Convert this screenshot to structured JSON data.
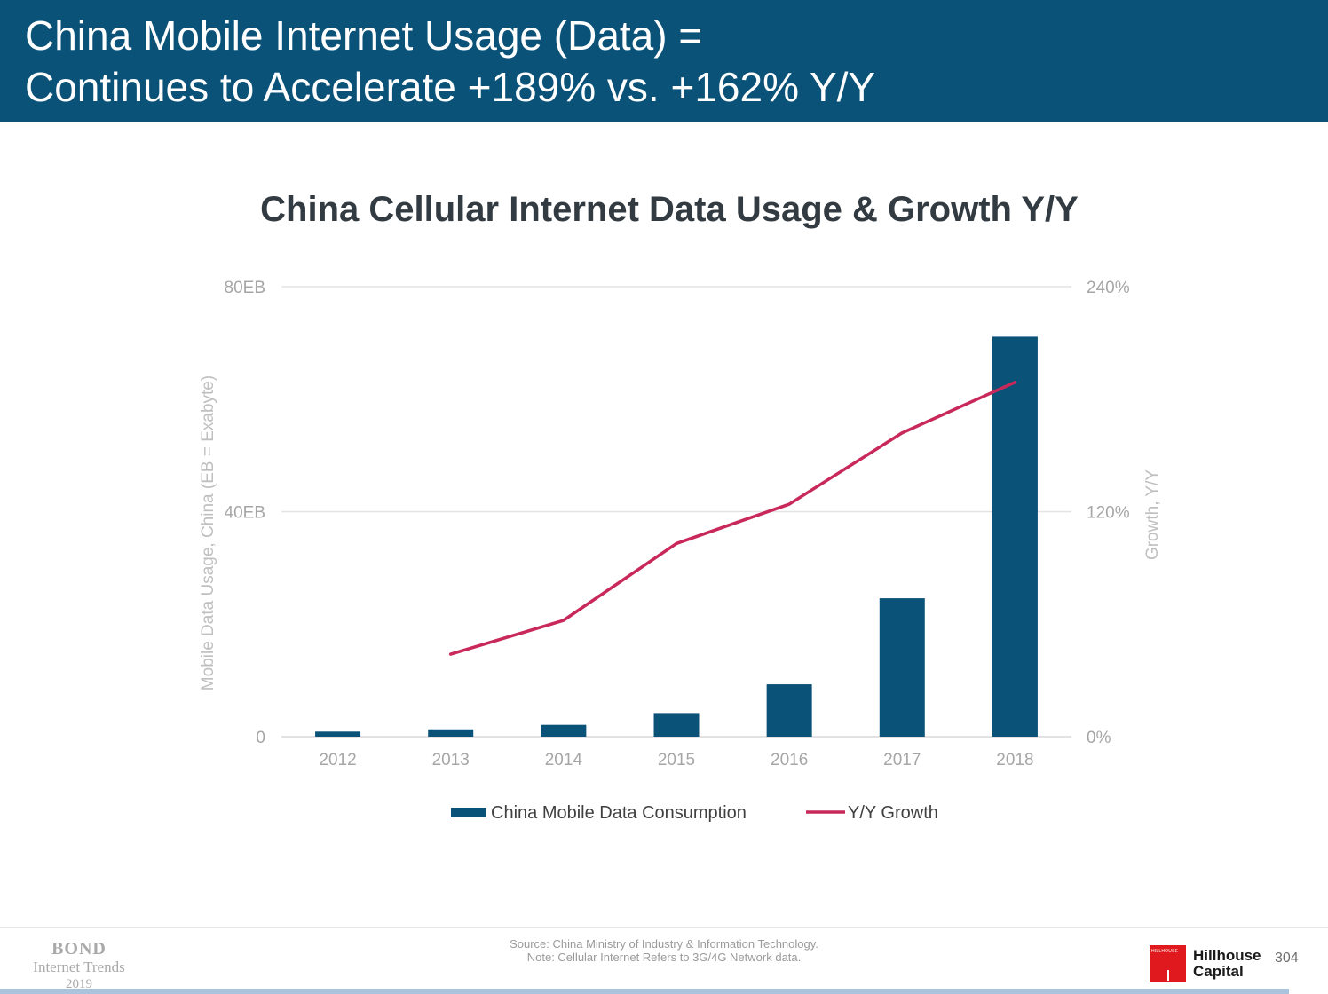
{
  "header": {
    "line1": "China Mobile Internet Usage (Data) =",
    "line2": "Continues to Accelerate +189% vs. +162% Y/Y"
  },
  "colors": {
    "header_bg": "#0b5278",
    "bar": "#0b5278",
    "line": "#c8285a",
    "gridline": "#e3e3e3",
    "tick_text": "#a6a6a6"
  },
  "chart_data": {
    "type": "bar",
    "title": "China Cellular Internet Data Usage & Growth Y/Y",
    "categories": [
      "2012",
      "2013",
      "2014",
      "2015",
      "2016",
      "2017",
      "2018"
    ],
    "series": [
      {
        "name": "China Mobile Data Consumption",
        "type": "bar",
        "axis": "left",
        "values": [
          0.9,
          1.3,
          2.1,
          4.2,
          9.3,
          24.6,
          71.1
        ]
      },
      {
        "name": "Y/Y Growth",
        "type": "line",
        "axis": "right",
        "values": [
          null,
          44,
          62,
          103,
          124,
          162,
          189
        ]
      }
    ],
    "y_left": {
      "label": "Mobile Data Usage, China (EB = Exabyte)",
      "ticks": [
        "0",
        "40EB",
        "80EB"
      ],
      "tick_values": [
        0,
        40,
        80
      ],
      "range": [
        0,
        80
      ]
    },
    "y_right": {
      "label": "Growth, Y/Y",
      "ticks": [
        "0%",
        "120%",
        "240%"
      ],
      "tick_values": [
        0,
        120,
        240
      ],
      "range": [
        0,
        240
      ]
    },
    "grid": true,
    "legend_position": "bottom"
  },
  "footer": {
    "source": "Source: China Ministry of Industry & Information Technology.",
    "note": "Note: Cellular Internet Refers to 3G/4G Network data.",
    "bond_logo": [
      "BOND",
      "Internet Trends",
      "2019"
    ],
    "hillhouse_mark_text": "HILLHOUSE",
    "hillhouse_line1": "Hillhouse",
    "hillhouse_line2": "Capital",
    "page_number": "304"
  }
}
